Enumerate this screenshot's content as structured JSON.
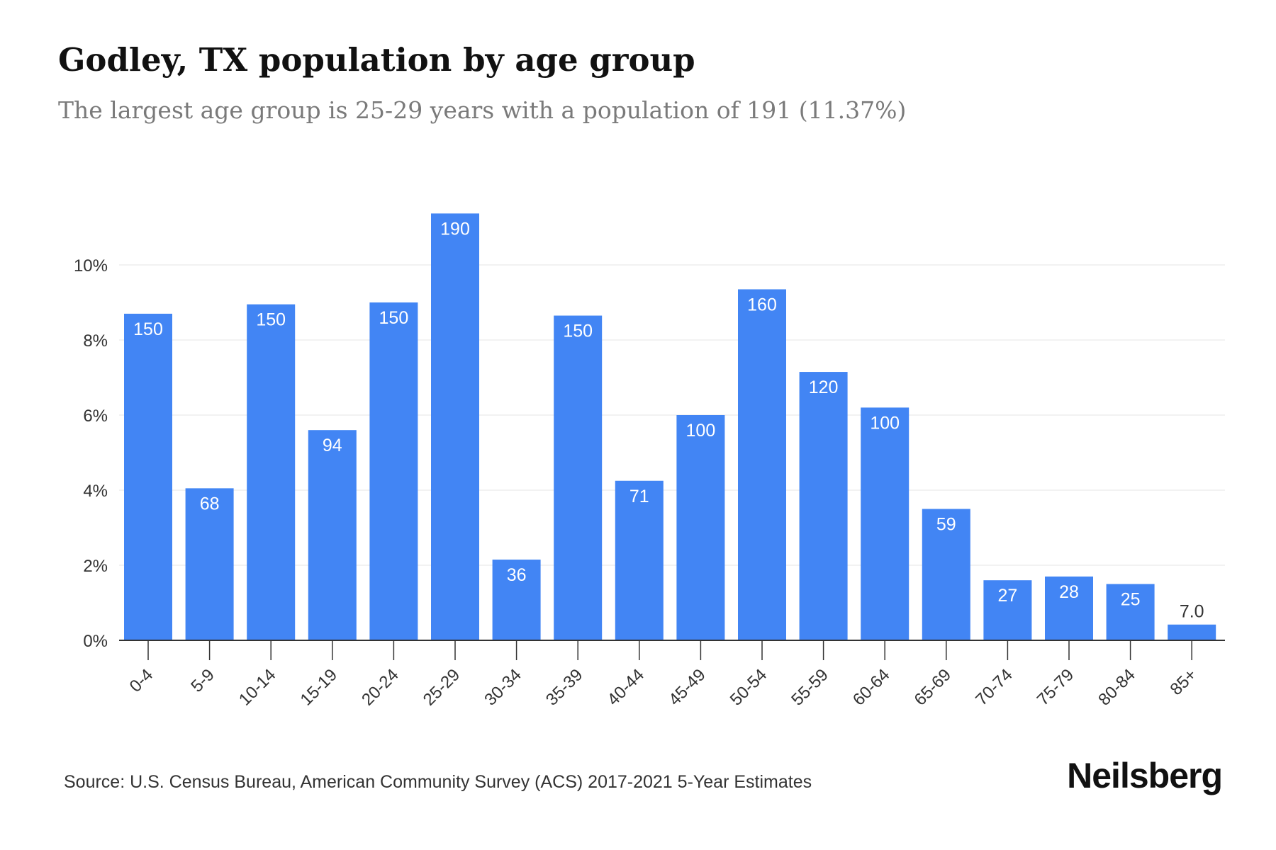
{
  "title": "Godley, TX population by age group",
  "subtitle": "The largest age group is 25-29 years with a population of 191 (11.37%)",
  "source": "Source: U.S. Census Bureau, American Community Survey (ACS) 2017-2021 5-Year Estimates",
  "brand": "Neilsberg",
  "colors": {
    "bar": "#4285f4",
    "bar_label": "#ffffff",
    "outside_label": "#333333",
    "grid": "#eeeeee",
    "axis": "#333333",
    "tick_text": "#333333"
  },
  "chart_data": {
    "type": "bar",
    "categories": [
      "0-4",
      "5-9",
      "10-14",
      "15-19",
      "20-24",
      "25-29",
      "30-34",
      "35-39",
      "40-44",
      "45-49",
      "50-54",
      "55-59",
      "60-64",
      "65-69",
      "70-74",
      "75-79",
      "80-84",
      "85+"
    ],
    "values_percent": [
      8.7,
      4.05,
      8.95,
      5.6,
      9.0,
      11.37,
      2.15,
      8.65,
      4.25,
      6.0,
      9.35,
      7.15,
      6.2,
      3.5,
      1.6,
      1.7,
      1.5,
      0.42
    ],
    "data_labels": [
      "150",
      "68",
      "150",
      "94",
      "150",
      "190",
      "36",
      "150",
      "71",
      "100",
      "160",
      "120",
      "100",
      "59",
      "27",
      "28",
      "25",
      "7.0"
    ],
    "y_ticks": [
      0,
      2,
      4,
      6,
      8,
      10
    ],
    "y_tick_labels": [
      "0%",
      "2%",
      "4%",
      "6%",
      "8%",
      "10%"
    ],
    "ylim": [
      0,
      11.5
    ],
    "grid": true,
    "xlabel": "",
    "ylabel": ""
  }
}
